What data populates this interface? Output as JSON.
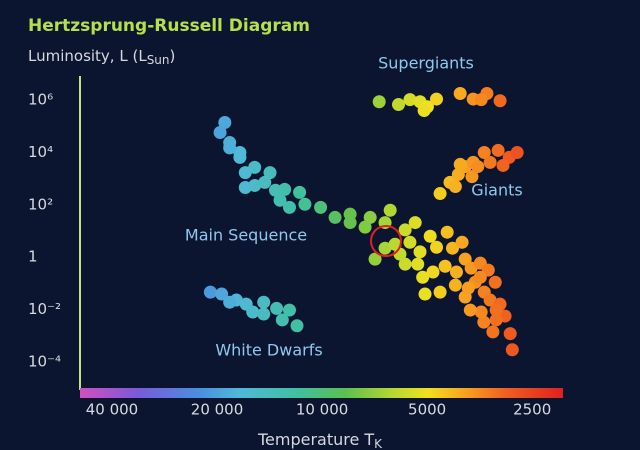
{
  "chart_data": {
    "type": "scatter",
    "title": "Hertzsprung-Russell Diagram",
    "y_label": {
      "text": "Luminosity, L (L",
      "sub": "Sun",
      "end": ")"
    },
    "x_label": {
      "text": "Temperature T",
      "sub": "K"
    },
    "xscale": "log",
    "yscale": "log",
    "xlim": [
      49400,
      2040
    ],
    "ylim": [
      1e-05,
      10000000
    ],
    "xticks": [
      {
        "value": 40000,
        "label": "40 000"
      },
      {
        "value": 20000,
        "label": "20 000"
      },
      {
        "value": 10000,
        "label": "10 000"
      },
      5000,
      2500
    ],
    "yticks": [
      {
        "value": 1000000,
        "label": "10⁶"
      },
      {
        "value": 10000,
        "label": "10⁴"
      },
      {
        "value": 100,
        "label": "10²"
      },
      1,
      {
        "value": 0.01,
        "label": "10⁻²"
      },
      {
        "value": 0.0001,
        "label": "10⁻⁴"
      }
    ],
    "grid": false,
    "series": [
      {
        "name": "Main Sequence",
        "x": [
          19000,
          19600,
          18400,
          17200,
          18400,
          17200,
          15600,
          16600,
          14100,
          16600,
          15600,
          14600,
          13600,
          12800,
          13200,
          11600,
          12400,
          11200,
          10100,
          9180,
          8310,
          8310,
          7280,
          6600,
          7530,
          6380,
          7050,
          6600,
          6180,
          5780,
          5410,
          5600,
          5240,
          4900,
          4700,
          4380,
          4230,
          3970,
          3890,
          4440,
          4810,
          5150,
          5320,
          5780,
          5980,
          4120,
          3740,
          3520,
          3640,
          3340,
          3190,
          3430,
          3890,
          4150,
          4590,
          5070,
          3300,
          3090,
          2990,
          3170,
          3440,
          3240,
          2890,
          2850,
          3170,
          3500,
          3760,
          3810,
          3520
        ],
        "values": [
          140000,
          58000,
          24000,
          10000,
          15000,
          6500,
          2700,
          1700,
          1700,
          460,
          550,
          720,
          360,
          390,
          150,
          300,
          80,
          105,
          80,
          33,
          44,
          21,
          33,
          21,
          14,
          62,
          0.84,
          2.2,
          3.1,
          11,
          21,
          3.7,
          1.6,
          6.3,
          2.4,
          9,
          2.2,
          3.7,
          0.84,
          0.45,
          0.27,
          0.17,
          0.54,
          0.54,
          1.3,
          0.27,
          0.38,
          0.59,
          0.11,
          0.32,
          0.11,
          0.046,
          0.03,
          0.085,
          0.046,
          0.039,
          0.023,
          0.016,
          0.0056,
          0.004,
          0.0033,
          0.0014,
          0.0012,
          0.00029,
          0.0095,
          0.008,
          0.0095,
          0.066,
          0.17
        ]
      },
      {
        "name": "Supergiants",
        "x": [
          6860,
          6040,
          5600,
          5240,
          4990,
          4700,
          4020,
          3690,
          3370,
          3090,
          3500,
          5100
        ],
        "values": [
          870000,
          680000,
          1050000,
          870000,
          560000,
          1100000,
          1800000,
          1100000,
          1800000,
          950000,
          1050000,
          400000
        ]
      },
      {
        "name": "Giants",
        "x": [
          4590,
          4300,
          4070,
          3890,
          3690,
          3430,
          3130,
          2910,
          2760,
          3300,
          3030,
          3720,
          4020,
          3580,
          4150
        ],
        "values": [
          270,
          720,
          1450,
          2900,
          4200,
          10000,
          12000,
          6500,
          10000,
          4200,
          3200,
          1200,
          3500,
          2900,
          500
        ]
      },
      {
        "name": "White Dwarfs",
        "x": [
          20900,
          19400,
          17600,
          18400,
          16500,
          15800,
          14700,
          13500,
          12400,
          13000,
          11800,
          14700
        ],
        "values": [
          0.046,
          0.039,
          0.023,
          0.019,
          0.016,
          0.008,
          0.0067,
          0.011,
          0.0095,
          0.004,
          0.0024,
          0.019
        ]
      }
    ]
  }
}
